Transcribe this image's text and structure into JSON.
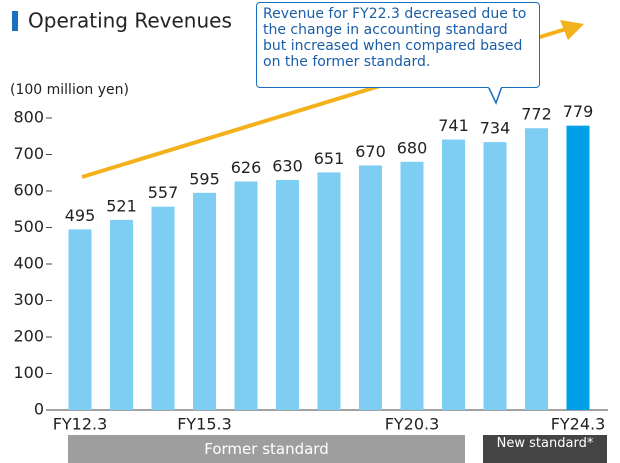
{
  "chart_data": {
    "type": "bar",
    "title": "Operating Revenues",
    "y_label": "(100 million yen)",
    "annotation": "Revenue for FY22.3 decreased due to the change in accounting standard but increased when compared based on the former standard.",
    "categories": [
      "FY12.3",
      null,
      null,
      "FY15.3",
      null,
      null,
      null,
      null,
      "FY20.3",
      null,
      null,
      null,
      "FY24.3"
    ],
    "values": [
      495,
      521,
      557,
      595,
      626,
      630,
      651,
      670,
      680,
      741,
      734,
      772,
      779
    ],
    "colors": [
      "#7ecef4",
      "#7ecef4",
      "#7ecef4",
      "#7ecef4",
      "#7ecef4",
      "#7ecef4",
      "#7ecef4",
      "#7ecef4",
      "#7ecef4",
      "#7ecef4",
      "#7ecef4",
      "#7ecef4",
      "#00a0e9"
    ],
    "ylim": [
      0,
      800
    ],
    "yticks": [
      0,
      100,
      200,
      300,
      400,
      500,
      600,
      700,
      800
    ],
    "bands": [
      "Former standard",
      "New standard*"
    ]
  }
}
